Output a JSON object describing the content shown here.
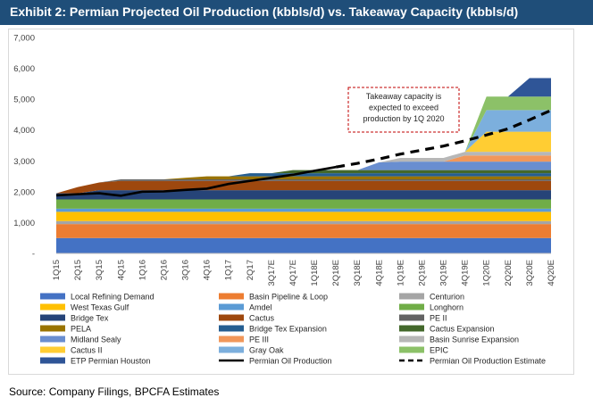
{
  "title": "Exhibit 2: Permian Projected Oil Production (kbbls/d) vs. Takeaway Capacity (kbbls/d)",
  "source": "Source: Company Filings, BPCFA Estimates",
  "colors": {
    "header": "#1f4e79"
  },
  "chart_data": {
    "type": "area",
    "stacked": true,
    "title": "",
    "xlabel": "",
    "ylabel": "",
    "ylim": [
      0,
      7000
    ],
    "yticks": [
      "-",
      "1,000",
      "2,000",
      "3,000",
      "4,000",
      "5,000",
      "6,000",
      "7,000"
    ],
    "grid": false,
    "legend_position": "bottom",
    "categories": [
      "1Q15",
      "2Q15",
      "3Q15",
      "4Q15",
      "1Q16",
      "2Q16",
      "3Q16",
      "4Q16",
      "1Q17",
      "2Q17",
      "3Q17E",
      "4Q17E",
      "1Q18E",
      "2Q18E",
      "3Q18E",
      "4Q18E",
      "1Q19E",
      "2Q19E",
      "3Q19E",
      "4Q19E",
      "1Q20E",
      "2Q20E",
      "3Q20E",
      "4Q20E"
    ],
    "series": [
      {
        "name": "Local Refining Demand",
        "color": "#4472c4",
        "values": [
          500,
          500,
          500,
          500,
          500,
          500,
          500,
          500,
          500,
          500,
          500,
          500,
          500,
          500,
          500,
          500,
          500,
          500,
          500,
          500,
          500,
          500,
          500,
          500
        ]
      },
      {
        "name": "Basin Pipeline & Loop",
        "color": "#ed7d31",
        "values": [
          450,
          450,
          450,
          450,
          450,
          450,
          450,
          450,
          450,
          450,
          450,
          450,
          450,
          450,
          450,
          450,
          450,
          450,
          450,
          450,
          450,
          450,
          450,
          450
        ]
      },
      {
        "name": "Centurion",
        "color": "#a5a5a5",
        "values": [
          100,
          100,
          100,
          100,
          100,
          100,
          100,
          100,
          100,
          100,
          100,
          100,
          100,
          100,
          100,
          100,
          100,
          100,
          100,
          100,
          100,
          100,
          100,
          100
        ]
      },
      {
        "name": "West Texas Gulf",
        "color": "#ffc000",
        "values": [
          300,
          300,
          300,
          300,
          300,
          300,
          300,
          300,
          300,
          300,
          300,
          300,
          300,
          300,
          300,
          300,
          300,
          300,
          300,
          300,
          300,
          300,
          300,
          300
        ]
      },
      {
        "name": "Amdel",
        "color": "#5b9bd5",
        "values": [
          100,
          100,
          100,
          100,
          100,
          100,
          100,
          100,
          100,
          100,
          100,
          100,
          100,
          100,
          100,
          100,
          100,
          100,
          100,
          100,
          100,
          100,
          100,
          100
        ]
      },
      {
        "name": "Longhorn",
        "color": "#70ad47",
        "values": [
          300,
          300,
          300,
          300,
          300,
          300,
          300,
          300,
          300,
          300,
          300,
          300,
          300,
          300,
          300,
          300,
          300,
          300,
          300,
          300,
          300,
          300,
          300,
          300
        ]
      },
      {
        "name": "Bridge Tex",
        "color": "#264478",
        "values": [
          200,
          200,
          300,
          300,
          300,
          300,
          300,
          300,
          300,
          300,
          300,
          300,
          300,
          300,
          300,
          300,
          300,
          300,
          300,
          300,
          300,
          300,
          300,
          300
        ]
      },
      {
        "name": "Cactus",
        "color": "#9e480e",
        "values": [
          0,
          200,
          250,
          300,
          300,
          300,
          300,
          300,
          300,
          300,
          300,
          300,
          300,
          300,
          300,
          300,
          300,
          300,
          300,
          300,
          300,
          300,
          300,
          300
        ]
      },
      {
        "name": "PE II",
        "color": "#636363",
        "values": [
          0,
          0,
          0,
          50,
          50,
          50,
          50,
          50,
          50,
          50,
          50,
          50,
          50,
          50,
          50,
          50,
          50,
          50,
          50,
          50,
          50,
          50,
          50,
          50
        ]
      },
      {
        "name": "PELA",
        "color": "#997300",
        "values": [
          0,
          0,
          0,
          0,
          0,
          0,
          50,
          100,
          100,
          100,
          100,
          100,
          100,
          100,
          100,
          100,
          100,
          100,
          100,
          100,
          100,
          100,
          100,
          100
        ]
      },
      {
        "name": "Bridge Tex Expansion",
        "color": "#255e91",
        "values": [
          0,
          0,
          0,
          0,
          0,
          0,
          0,
          0,
          0,
          100,
          100,
          100,
          100,
          100,
          100,
          100,
          100,
          100,
          100,
          100,
          100,
          100,
          100,
          100
        ]
      },
      {
        "name": "Cactus Expansion",
        "color": "#43682b",
        "values": [
          0,
          0,
          0,
          0,
          0,
          0,
          0,
          0,
          0,
          0,
          0,
          100,
          100,
          100,
          100,
          100,
          100,
          100,
          100,
          100,
          100,
          100,
          100,
          100
        ]
      },
      {
        "name": "Midland Sealy",
        "color": "#698ed0",
        "values": [
          0,
          0,
          0,
          0,
          0,
          0,
          0,
          0,
          0,
          0,
          0,
          0,
          0,
          0,
          0,
          250,
          275,
          275,
          275,
          275,
          275,
          275,
          275,
          275
        ]
      },
      {
        "name": "PE III",
        "color": "#f1975a",
        "values": [
          0,
          0,
          0,
          0,
          0,
          0,
          0,
          0,
          0,
          0,
          0,
          0,
          0,
          0,
          0,
          0,
          0,
          0,
          0,
          200,
          200,
          200,
          200,
          200
        ]
      },
      {
        "name": "Basin Sunrise Expansion",
        "color": "#b7b7b7",
        "values": [
          0,
          0,
          0,
          0,
          0,
          0,
          0,
          0,
          0,
          0,
          0,
          0,
          0,
          0,
          0,
          0,
          120,
          120,
          120,
          120,
          120,
          120,
          120,
          120
        ]
      },
      {
        "name": "Cactus II",
        "color": "#ffcd33",
        "values": [
          0,
          0,
          0,
          0,
          0,
          0,
          0,
          0,
          0,
          0,
          0,
          0,
          0,
          0,
          0,
          0,
          0,
          0,
          0,
          0,
          650,
          650,
          650,
          650
        ]
      },
      {
        "name": "Gray Oak",
        "color": "#7cafdd",
        "values": [
          0,
          0,
          0,
          0,
          0,
          0,
          0,
          0,
          0,
          0,
          0,
          0,
          0,
          0,
          0,
          0,
          0,
          0,
          0,
          0,
          700,
          700,
          700,
          700
        ]
      },
      {
        "name": "EPIC",
        "color": "#8cc168",
        "values": [
          0,
          0,
          0,
          0,
          0,
          0,
          0,
          0,
          0,
          0,
          0,
          0,
          0,
          0,
          0,
          0,
          0,
          0,
          0,
          0,
          440,
          440,
          440,
          440
        ]
      },
      {
        "name": "ETP Permian Houston",
        "color": "#2f5597",
        "values": [
          0,
          0,
          0,
          0,
          0,
          0,
          0,
          0,
          0,
          0,
          0,
          0,
          0,
          0,
          0,
          0,
          0,
          0,
          0,
          0,
          0,
          0,
          600,
          600
        ]
      }
    ],
    "lines": [
      {
        "name": "Permian Oil Production",
        "color": "#000000",
        "style": "solid",
        "values": [
          1880,
          1920,
          1950,
          1870,
          2000,
          2010,
          2060,
          2100,
          2250,
          2350,
          2450,
          2550,
          2680,
          2800,
          null,
          null,
          null,
          null,
          null,
          null,
          null,
          null,
          null,
          null
        ]
      },
      {
        "name": "Permian Oil Production Estimate",
        "color": "#000000",
        "style": "dashed",
        "values": [
          null,
          null,
          null,
          null,
          null,
          null,
          null,
          null,
          null,
          null,
          null,
          null,
          null,
          2800,
          2920,
          3060,
          3220,
          3350,
          3480,
          3650,
          3840,
          4040,
          4330,
          4640
        ]
      }
    ],
    "annotations": [
      {
        "text": [
          "Takeaway capacity is",
          "expected to exceed",
          "production by 1Q 2020"
        ]
      }
    ]
  }
}
